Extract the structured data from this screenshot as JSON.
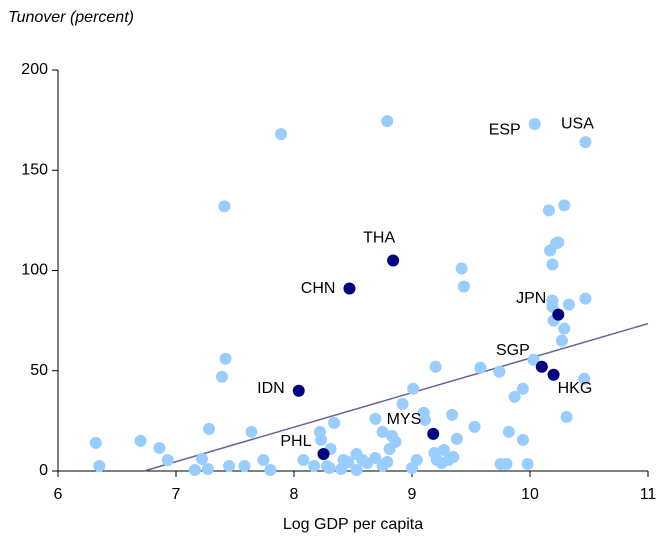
{
  "chart_data": {
    "type": "scatter",
    "title": "Tunover (percent)",
    "x_label": "Log GDP per capita",
    "xlim": [
      6,
      11
    ],
    "xticks": [
      6,
      7,
      8,
      9,
      10,
      11
    ],
    "ylim": [
      0,
      200
    ],
    "yticks": [
      0,
      50,
      100,
      150,
      200
    ],
    "series": [
      {
        "color": "#99ccff",
        "x": [
          6.32,
          6.35,
          6.7,
          6.86,
          6.93,
          7.16,
          7.22,
          7.28,
          7.27,
          7.41,
          7.39,
          7.42,
          7.45,
          7.58,
          7.64,
          7.74,
          7.8,
          7.89,
          8.08,
          8.17,
          8.22,
          8.23,
          8.28,
          8.31,
          8.34,
          8.3,
          8.4,
          8.42,
          8.46,
          8.53,
          8.53,
          8.58,
          8.62,
          8.69,
          8.69,
          8.75,
          8.75,
          8.79,
          8.79,
          8.83,
          8.86,
          8.81,
          8.92,
          9.0,
          9.01,
          9.04,
          9.1,
          9.11,
          9.2,
          9.19,
          9.21,
          9.25,
          9.27,
          9.31,
          9.35,
          9.34,
          9.38,
          9.42,
          9.44,
          9.53,
          9.58,
          9.74,
          9.75,
          9.8,
          9.82,
          9.87,
          9.94,
          9.94,
          9.98,
          10.03,
          10.04,
          10.16,
          10.17,
          10.19,
          10.19,
          10.19,
          10.2,
          10.22,
          10.24,
          10.27,
          10.29,
          10.29,
          10.33,
          10.31,
          10.46,
          10.47,
          10.47
        ],
        "y": [
          14,
          2.5,
          15,
          11.5,
          5.5,
          0.5,
          6,
          21,
          1,
          132,
          47,
          56,
          2.5,
          2.5,
          19.5,
          5.5,
          0.5,
          168,
          5.5,
          2.5,
          19.5,
          15.5,
          2.5,
          11,
          24,
          1.5,
          1,
          5.5,
          4.5,
          8.5,
          0.5,
          5.5,
          4,
          6.5,
          26,
          19.5,
          2.5,
          4.5,
          174.5,
          17.5,
          14.5,
          11,
          33.5,
          1.5,
          41,
          5.5,
          29,
          25.5,
          52,
          9,
          5.5,
          4,
          10.5,
          5.5,
          7,
          28,
          16,
          101,
          92,
          22,
          51.5,
          49.5,
          3.5,
          3.5,
          19.5,
          37,
          41,
          15.5,
          3.5,
          55.5,
          173,
          130,
          110,
          103,
          85,
          82,
          75,
          113.5,
          114,
          65,
          71,
          132.5,
          83,
          27,
          46,
          86,
          164
        ]
      },
      {
        "color": "#000080",
        "labels": [
          "THA",
          "CHN",
          "JPN",
          "SGP",
          "HKG",
          "IDN",
          "MYS",
          "PHL"
        ],
        "x": [
          8.84,
          8.47,
          10.24,
          10.1,
          10.2,
          8.04,
          9.18,
          8.25
        ],
        "y": [
          105,
          91,
          78,
          52,
          48,
          40,
          18.5,
          8.5
        ]
      }
    ],
    "annotations": [
      {
        "text": "ESP",
        "x": 10.04,
        "y": 173
      },
      {
        "text": "USA",
        "x": 10.47,
        "y": 164
      }
    ],
    "trend_line": {
      "color": "#666699",
      "x": [
        6.73,
        11
      ],
      "y": [
        0,
        73.5
      ]
    }
  }
}
